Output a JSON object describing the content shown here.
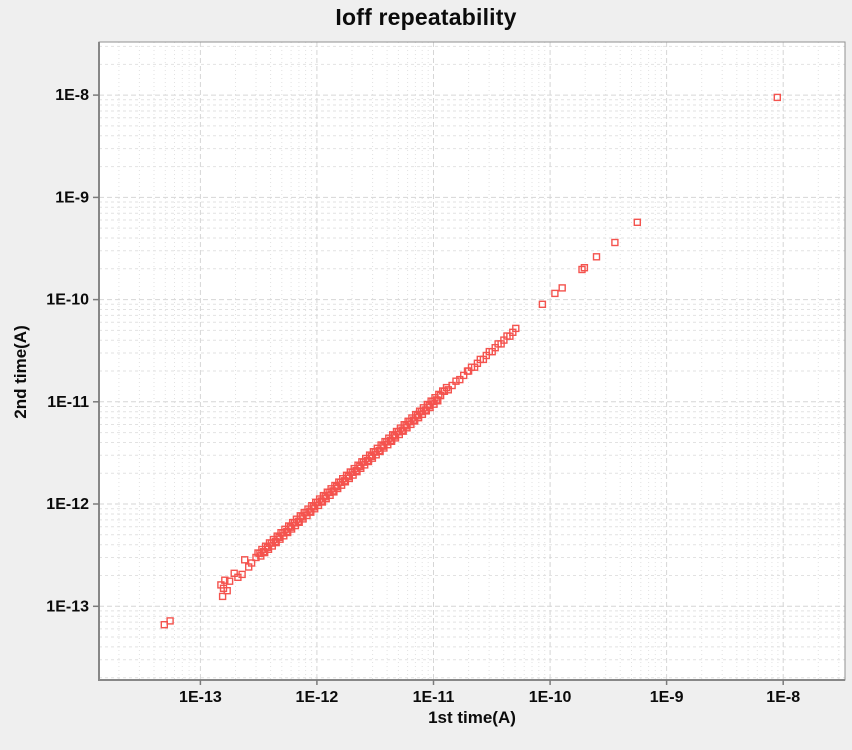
{
  "chart_data": {
    "type": "scatter",
    "title": "Ioff repeatability",
    "xlabel": "1st time(A)",
    "ylabel": "2nd time(A)",
    "x_scale": "log",
    "y_scale": "log",
    "xlim": [
      1.35e-14,
      3.39e-08
    ],
    "ylim": [
      1.9e-14,
      3.31e-08
    ],
    "x_ticks": [
      {
        "value": 1e-13,
        "label": "1E-13"
      },
      {
        "value": 1e-12,
        "label": "1E-12"
      },
      {
        "value": 1e-11,
        "label": "1E-11"
      },
      {
        "value": 1e-10,
        "label": "1E-10"
      },
      {
        "value": 1e-09,
        "label": "1E-9"
      },
      {
        "value": 1e-08,
        "label": "1E-8"
      }
    ],
    "y_ticks": [
      {
        "value": 1e-08,
        "label": "1E-8"
      },
      {
        "value": 1e-09,
        "label": "1E-9"
      },
      {
        "value": 1e-10,
        "label": "1E-10"
      },
      {
        "value": 1e-11,
        "label": "1E-11"
      },
      {
        "value": 1e-12,
        "label": "1E-12"
      },
      {
        "value": 1e-13,
        "label": "1E-13"
      }
    ],
    "grid": {
      "major": true,
      "minor": true,
      "major_color": "#d6d6d6",
      "minor_color": "#e2e2e2"
    },
    "legend": "none",
    "plot_bg": "#ffffff",
    "page_bg": "#efefef",
    "border_color": "#919191",
    "marker": {
      "shape": "open-square",
      "size": 6,
      "color": "#f4534e"
    },
    "points": [
      [
        4.9e-14,
        6.6e-14
      ],
      [
        5.5e-14,
        7.2e-14
      ],
      [
        1.5e-13,
        1.62e-13
      ],
      [
        1.55e-13,
        1.25e-13
      ],
      [
        1.58e-13,
        1.5e-13
      ],
      [
        1.62e-13,
        1.8e-13
      ],
      [
        1.7e-13,
        1.42e-13
      ],
      [
        1.78e-13,
        1.76e-13
      ],
      [
        1.95e-13,
        2.1e-13
      ],
      [
        2.1e-13,
        1.92e-13
      ],
      [
        2.28e-13,
        2.05e-13
      ],
      [
        2.4e-13,
        2.85e-13
      ],
      [
        2.6e-13,
        2.42e-13
      ],
      [
        2.75e-13,
        2.65e-13
      ],
      [
        3e-13,
        3e-13
      ],
      [
        3.24e-13,
        3.3e-13
      ],
      [
        3.49e-13,
        3.42e-13
      ],
      [
        3.77e-13,
        3.77e-13
      ],
      [
        4.07e-13,
        4.15e-13
      ],
      [
        4.39e-13,
        4.3e-13
      ],
      [
        4.73e-13,
        4.73e-13
      ],
      [
        5.11e-13,
        5.21e-13
      ],
      [
        5.51e-13,
        5.4e-13
      ],
      [
        5.94e-13,
        5.94e-13
      ],
      [
        6.41e-13,
        6.54e-13
      ],
      [
        6.92e-13,
        6.78e-13
      ],
      [
        7.47e-13,
        7.47e-13
      ],
      [
        8.06e-13,
        8.22e-13
      ],
      [
        8.69e-13,
        8.52e-13
      ],
      [
        9.38e-13,
        9.38e-13
      ],
      [
        1.012e-12,
        1.032e-12
      ],
      [
        1.092e-12,
        1.07e-12
      ],
      [
        1.178e-12,
        1.178e-12
      ],
      [
        1.271e-12,
        1.296e-12
      ],
      [
        1.371e-12,
        1.344e-12
      ],
      [
        1.479e-12,
        1.479e-12
      ],
      [
        1.596e-12,
        1.628e-12
      ],
      [
        1.722e-12,
        1.688e-12
      ],
      [
        1.858e-12,
        1.858e-12
      ],
      [
        2.005e-12,
        2.045e-12
      ],
      [
        2.163e-12,
        2.12e-12
      ],
      [
        2.334e-12,
        2.334e-12
      ],
      [
        2.518e-12,
        2.568e-12
      ],
      [
        2.717e-12,
        2.663e-12
      ],
      [
        2.931e-12,
        2.931e-12
      ],
      [
        3.162e-12,
        3.225e-12
      ],
      [
        3.412e-12,
        3.344e-12
      ],
      [
        3.681e-12,
        3.681e-12
      ],
      [
        3.972e-12,
        4.051e-12
      ],
      [
        4.285e-12,
        4.199e-12
      ],
      [
        4.623e-12,
        4.623e-12
      ],
      [
        4.988e-12,
        5.088e-12
      ],
      [
        5.382e-12,
        5.274e-12
      ],
      [
        5.807e-12,
        5.807e-12
      ],
      [
        6.265e-12,
        6.39e-12
      ],
      [
        6.76e-12,
        6.625e-12
      ],
      [
        7.293e-12,
        7.293e-12
      ],
      [
        7.869e-12,
        8.026e-12
      ],
      [
        8.49e-12,
        8.32e-12
      ],
      [
        9.16e-12,
        9.16e-12
      ],
      [
        9.884e-12,
        1.008e-11
      ],
      [
        1.066e-11,
        1.045e-11
      ],
      [
        1.15e-11,
        1.15e-11
      ],
      [
        1.241e-11,
        1.266e-11
      ],
      [
        1.339e-11,
        1.312e-11
      ],
      [
        1.445e-11,
        1.445e-11
      ],
      [
        1.559e-11,
        1.59e-11
      ],
      [
        1.682e-11,
        1.648e-11
      ],
      [
        1.815e-11,
        1.815e-11
      ],
      [
        1.958e-11,
        1.997e-11
      ],
      [
        3.12e-13,
        3.32e-13
      ],
      [
        3.37e-13,
        3.59e-13
      ],
      [
        3.63e-13,
        3.87e-13
      ],
      [
        3.92e-13,
        4.17e-13
      ],
      [
        4.23e-13,
        4.5e-13
      ],
      [
        4.56e-13,
        4.86e-13
      ],
      [
        4.92e-13,
        5.24e-13
      ],
      [
        5.31e-13,
        5.66e-13
      ],
      [
        5.73e-13,
        6.1e-13
      ],
      [
        6.18e-13,
        6.58e-13
      ],
      [
        6.67e-13,
        7.1e-13
      ],
      [
        7.2e-13,
        7.67e-13
      ],
      [
        7.77e-13,
        8.27e-13
      ],
      [
        8.38e-13,
        8.92e-13
      ],
      [
        9.04e-13,
        9.63e-13
      ],
      [
        9.76e-13,
        1.039e-12
      ],
      [
        1.053e-12,
        1.121e-12
      ],
      [
        1.136e-12,
        1.21e-12
      ],
      [
        1.226e-12,
        1.306e-12
      ],
      [
        1.323e-12,
        1.409e-12
      ],
      [
        1.427e-12,
        1.52e-12
      ],
      [
        1.54e-12,
        1.64e-12
      ],
      [
        1.662e-12,
        1.77e-12
      ],
      [
        1.793e-12,
        1.909e-12
      ],
      [
        1.934e-12,
        2.06e-12
      ],
      [
        2.087e-12,
        2.223e-12
      ],
      [
        2.252e-12,
        2.398e-12
      ],
      [
        2.43e-12,
        2.588e-12
      ],
      [
        2.622e-12,
        2.792e-12
      ],
      [
        2.829e-12,
        3.013e-12
      ],
      [
        3.052e-12,
        3.25e-12
      ],
      [
        3.293e-12,
        3.507e-12
      ],
      [
        3.553e-12,
        3.784e-12
      ],
      [
        3.834e-12,
        4.083e-12
      ],
      [
        4.136e-12,
        4.405e-12
      ],
      [
        4.463e-12,
        4.753e-12
      ],
      [
        4.815e-12,
        5.128e-12
      ],
      [
        5.196e-12,
        5.534e-12
      ],
      [
        5.606e-12,
        5.97e-12
      ],
      [
        6.049e-12,
        6.442e-12
      ],
      [
        6.526e-12,
        6.95e-12
      ],
      [
        7.042e-12,
        7.5e-12
      ],
      [
        7.598e-12,
        8.092e-12
      ],
      [
        8.198e-12,
        8.731e-12
      ],
      [
        8.845e-12,
        9.42e-12
      ],
      [
        9.544e-12,
        1.016e-11
      ],
      [
        1.03e-11,
        1.097e-11
      ],
      [
        1.111e-11,
        1.183e-11
      ],
      [
        1.199e-11,
        1.277e-11
      ],
      [
        1.293e-11,
        1.377e-11
      ],
      [
        3.3e-13,
        3.1e-13
      ],
      [
        3.56e-13,
        3.35e-13
      ],
      [
        3.84e-13,
        3.61e-13
      ],
      [
        4.14e-13,
        3.89e-13
      ],
      [
        4.47e-13,
        4.2e-13
      ],
      [
        4.82e-13,
        4.53e-13
      ],
      [
        5.2e-13,
        4.89e-13
      ],
      [
        5.61e-13,
        5.27e-13
      ],
      [
        6.06e-13,
        5.7e-13
      ],
      [
        6.54e-13,
        6.15e-13
      ],
      [
        7.05e-13,
        6.63e-13
      ],
      [
        7.61e-13,
        7.15e-13
      ],
      [
        8.21e-13,
        7.72e-13
      ],
      [
        8.86e-13,
        8.33e-13
      ],
      [
        9.56e-13,
        8.99e-13
      ],
      [
        1.031e-12,
        9.69e-13
      ],
      [
        1.113e-12,
        1.046e-12
      ],
      [
        1.201e-12,
        1.129e-12
      ],
      [
        1.296e-12,
        1.218e-12
      ],
      [
        1.398e-12,
        1.314e-12
      ],
      [
        1.508e-12,
        1.418e-12
      ],
      [
        1.627e-12,
        1.529e-12
      ],
      [
        1.756e-12,
        1.651e-12
      ],
      [
        1.895e-12,
        1.781e-12
      ],
      [
        2.044e-12,
        1.921e-12
      ],
      [
        2.206e-12,
        2.074e-12
      ],
      [
        2.38e-12,
        2.237e-12
      ],
      [
        2.568e-12,
        2.414e-12
      ],
      [
        2.771e-12,
        2.605e-12
      ],
      [
        2.99e-12,
        2.811e-12
      ],
      [
        3.226e-12,
        3.032e-12
      ],
      [
        3.481e-12,
        3.272e-12
      ],
      [
        3.756e-12,
        3.531e-12
      ],
      [
        4.053e-12,
        3.809e-12
      ],
      [
        4.373e-12,
        4.111e-12
      ],
      [
        4.718e-12,
        4.435e-12
      ],
      [
        5.091e-12,
        4.786e-12
      ],
      [
        5.493e-12,
        5.163e-12
      ],
      [
        5.927e-12,
        5.571e-12
      ],
      [
        6.395e-12,
        6.011e-12
      ],
      [
        6.9e-12,
        6.486e-12
      ],
      [
        7.445e-12,
        6.998e-12
      ],
      [
        8.033e-12,
        7.551e-12
      ],
      [
        8.668e-12,
        8.148e-12
      ],
      [
        9.353e-12,
        8.792e-12
      ],
      [
        1.009e-11,
        9.48e-12
      ],
      [
        1.089e-11,
        1.024e-11
      ],
      [
        2e-11,
        2e-11
      ],
      [
        2.12e-11,
        2.18e-11
      ],
      [
        2.25e-11,
        2.18e-11
      ],
      [
        2.38e-11,
        2.38e-11
      ],
      [
        2.52e-11,
        2.6e-11
      ],
      [
        2.68e-11,
        2.6e-11
      ],
      [
        2.84e-11,
        2.84e-11
      ],
      [
        3.01e-11,
        3.1e-11
      ],
      [
        3.19e-11,
        3.09e-11
      ],
      [
        3.38e-11,
        3.38e-11
      ],
      [
        3.58e-11,
        3.69e-11
      ],
      [
        3.8e-11,
        3.69e-11
      ],
      [
        4.02e-11,
        4.02e-11
      ],
      [
        4.27e-11,
        4.4e-11
      ],
      [
        4.52e-11,
        4.38e-11
      ],
      [
        4.79e-11,
        4.79e-11
      ],
      [
        5.08e-11,
        5.23e-11
      ],
      [
        8.6e-11,
        9e-11
      ],
      [
        1.1e-10,
        1.15e-10
      ],
      [
        1.27e-10,
        1.3e-10
      ],
      [
        1.88e-10,
        1.97e-10
      ],
      [
        1.97e-10,
        2.05e-10
      ],
      [
        2.5e-10,
        2.62e-10
      ],
      [
        3.6e-10,
        3.62e-10
      ],
      [
        5.6e-10,
        5.7e-10
      ],
      [
        8.9e-09,
        9.5e-09
      ]
    ]
  }
}
